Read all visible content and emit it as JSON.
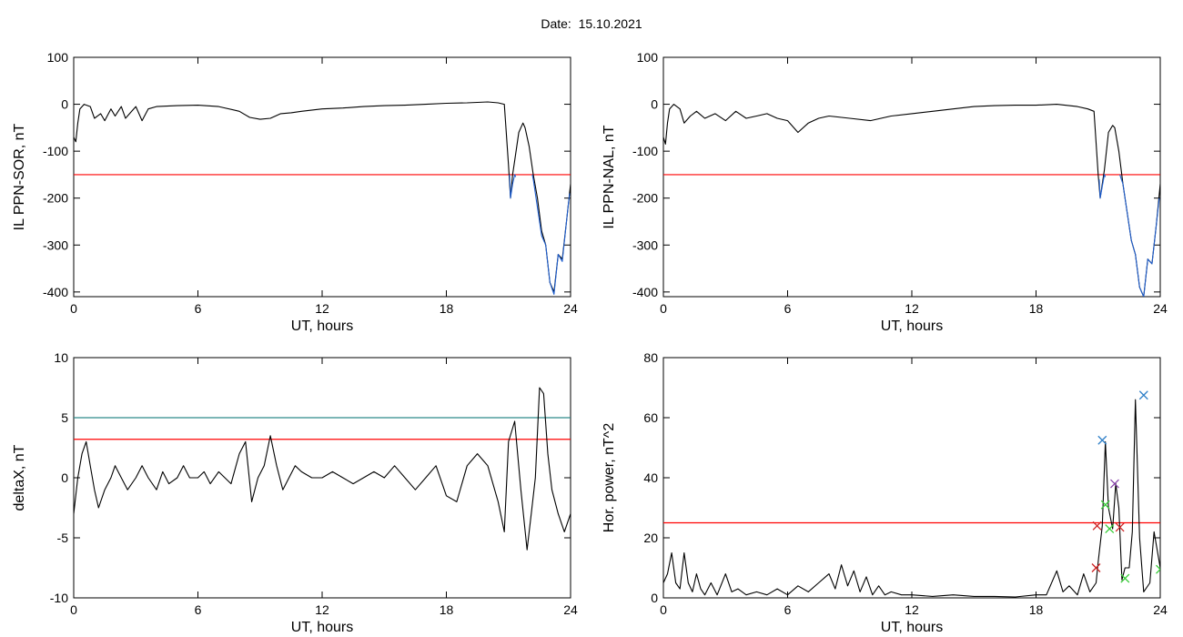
{
  "figure": {
    "title_label": "Date:",
    "title_value": "15.10.2021"
  },
  "colors": {
    "trace": "#000000",
    "threshold_red": "#ff0000",
    "threshold_teal": "#2e8b8b",
    "highlight_blue": "#1f5fd0",
    "marker_blue": "#2e7fc8",
    "marker_green": "#33cc33",
    "marker_red": "#cc2222",
    "marker_purple": "#8844aa"
  },
  "chart_data": [
    {
      "id": "il-sor",
      "type": "line",
      "xlabel": "UT, hours",
      "ylabel": "IL PPN-SOR, nT",
      "xlim": [
        0,
        24
      ],
      "ylim": [
        -410,
        100
      ],
      "xticks": [
        0,
        6,
        12,
        18,
        24
      ],
      "yticks": [
        100,
        0,
        -100,
        -200,
        -300,
        -400
      ],
      "threshold": {
        "y": -150,
        "color": "threshold_red"
      },
      "series": [
        {
          "color": "trace",
          "x": [
            0,
            0.1,
            0.2,
            0.3,
            0.5,
            0.8,
            1.0,
            1.3,
            1.5,
            1.8,
            2.0,
            2.3,
            2.5,
            2.8,
            3.0,
            3.3,
            3.6,
            4.0,
            5.0,
            6.0,
            7.0,
            8.0,
            8.5,
            9.0,
            9.5,
            10.0,
            10.5,
            11.0,
            12.0,
            13.0,
            14.0,
            15.0,
            16.0,
            17.0,
            18.0,
            19.0,
            20.0,
            20.5,
            20.8,
            21.0,
            21.1,
            21.2,
            21.3,
            21.5,
            21.7,
            21.8,
            22.0,
            22.2,
            22.4,
            22.6,
            22.8,
            23.0,
            23.2,
            23.4,
            23.6,
            23.8,
            24.0
          ],
          "values": [
            -70,
            -80,
            -40,
            -10,
            0,
            -5,
            -30,
            -20,
            -35,
            -10,
            -25,
            -5,
            -30,
            -15,
            -5,
            -35,
            -10,
            -5,
            -3,
            -2,
            -5,
            -15,
            -28,
            -32,
            -30,
            -20,
            -18,
            -15,
            -10,
            -8,
            -5,
            -3,
            -2,
            0,
            2,
            3,
            5,
            3,
            0,
            -130,
            -200,
            -150,
            -120,
            -60,
            -40,
            -50,
            -90,
            -150,
            -200,
            -270,
            -300,
            -380,
            -400,
            -320,
            -330,
            -250,
            -170
          ]
        },
        {
          "color": "highlight_blue",
          "x": [
            21.05,
            21.1,
            21.2,
            21.3,
            21.35
          ],
          "values": [
            -150,
            -200,
            -170,
            -150,
            -155
          ]
        },
        {
          "color": "highlight_blue",
          "x": [
            22.15,
            22.2,
            22.4,
            22.6,
            22.8,
            23.0,
            23.2,
            23.4,
            23.6,
            23.8,
            23.95
          ],
          "values": [
            -150,
            -160,
            -220,
            -280,
            -300,
            -380,
            -405,
            -320,
            -335,
            -250,
            -190
          ]
        }
      ]
    },
    {
      "id": "il-nal",
      "type": "line",
      "xlabel": "UT, hours",
      "ylabel": "IL PPN-NAL, nT",
      "xlim": [
        0,
        24
      ],
      "ylim": [
        -410,
        100
      ],
      "xticks": [
        0,
        6,
        12,
        18,
        24
      ],
      "yticks": [
        100,
        0,
        -100,
        -200,
        -300,
        -400
      ],
      "threshold": {
        "y": -150,
        "color": "threshold_red"
      },
      "series": [
        {
          "color": "trace",
          "x": [
            0,
            0.1,
            0.2,
            0.3,
            0.5,
            0.8,
            1.0,
            1.3,
            1.6,
            2.0,
            2.5,
            3.0,
            3.5,
            4.0,
            4.5,
            5.0,
            5.5,
            6.0,
            6.5,
            7.0,
            7.5,
            8.0,
            9.0,
            10.0,
            11.0,
            12.0,
            13.0,
            14.0,
            15.0,
            16.0,
            17.0,
            18.0,
            19.0,
            20.0,
            20.5,
            20.8,
            21.0,
            21.1,
            21.2,
            21.3,
            21.5,
            21.7,
            21.8,
            22.0,
            22.2,
            22.4,
            22.6,
            22.8,
            23.0,
            23.2,
            23.4,
            23.6,
            23.8,
            24.0
          ],
          "values": [
            -70,
            -85,
            -40,
            -10,
            0,
            -10,
            -40,
            -25,
            -15,
            -30,
            -20,
            -35,
            -15,
            -30,
            -25,
            -20,
            -30,
            -35,
            -60,
            -40,
            -30,
            -25,
            -30,
            -35,
            -25,
            -20,
            -15,
            -10,
            -5,
            -3,
            -2,
            -2,
            0,
            -5,
            -10,
            -15,
            -150,
            -200,
            -170,
            -140,
            -60,
            -45,
            -50,
            -100,
            -170,
            -230,
            -290,
            -320,
            -390,
            -410,
            -330,
            -340,
            -260,
            -170
          ]
        },
        {
          "color": "highlight_blue",
          "x": [
            21.05,
            21.1,
            21.2,
            21.3,
            21.35
          ],
          "values": [
            -160,
            -200,
            -175,
            -150,
            -155
          ]
        },
        {
          "color": "highlight_blue",
          "x": [
            22.05,
            22.2,
            22.4,
            22.6,
            22.8,
            23.0,
            23.2,
            23.4,
            23.6,
            23.8,
            23.95
          ],
          "values": [
            -150,
            -170,
            -230,
            -290,
            -320,
            -390,
            -410,
            -330,
            -340,
            -260,
            -200
          ]
        }
      ]
    },
    {
      "id": "delta-x",
      "type": "line",
      "xlabel": "UT, hours",
      "ylabel": "deltaX, nT",
      "xlim": [
        0,
        24
      ],
      "ylim": [
        -10,
        10
      ],
      "xticks": [
        0,
        6,
        12,
        18,
        24
      ],
      "yticks": [
        10,
        5,
        0,
        -5,
        -10
      ],
      "thresholds": [
        {
          "y": 5.0,
          "color": "threshold_teal"
        },
        {
          "y": 3.2,
          "color": "threshold_red"
        }
      ],
      "series": [
        {
          "color": "trace",
          "x": [
            0,
            0.2,
            0.4,
            0.6,
            0.8,
            1.0,
            1.2,
            1.5,
            1.8,
            2.0,
            2.3,
            2.6,
            3.0,
            3.3,
            3.6,
            4.0,
            4.3,
            4.6,
            5.0,
            5.3,
            5.6,
            6.0,
            6.3,
            6.6,
            7.0,
            7.3,
            7.6,
            8.0,
            8.3,
            8.6,
            8.9,
            9.2,
            9.5,
            9.8,
            10.1,
            10.4,
            10.7,
            11.0,
            11.5,
            12.0,
            12.5,
            13.0,
            13.5,
            14.0,
            14.5,
            15.0,
            15.5,
            16.0,
            16.5,
            17.0,
            17.5,
            18.0,
            18.5,
            19.0,
            19.5,
            20.0,
            20.5,
            20.8,
            21.0,
            21.3,
            21.6,
            21.9,
            22.1,
            22.3,
            22.5,
            22.7,
            22.9,
            23.1,
            23.4,
            23.7,
            24.0
          ],
          "values": [
            -3,
            0,
            2,
            3,
            1,
            -1,
            -2.5,
            -1,
            0,
            1,
            0,
            -1,
            0,
            1,
            0,
            -1,
            0.5,
            -0.5,
            0,
            1,
            0,
            0,
            0.5,
            -0.5,
            0.5,
            0,
            -0.5,
            2,
            3,
            -2,
            0,
            1,
            3.5,
            1,
            -1,
            0,
            1,
            0.5,
            0,
            0,
            0.5,
            0,
            -0.5,
            0,
            0.5,
            0,
            1,
            0,
            -1,
            0,
            1,
            -1.5,
            -2,
            1,
            2,
            1,
            -2,
            -4.5,
            3,
            4.7,
            -1,
            -6,
            -3,
            0,
            7.5,
            7,
            2,
            -1,
            -3,
            -4.5,
            -3
          ]
        }
      ]
    },
    {
      "id": "hor-power",
      "type": "line",
      "xlabel": "UT, hours",
      "ylabel": "Hor. power, nT^2",
      "xlim": [
        0,
        24
      ],
      "ylim": [
        0,
        80
      ],
      "xticks": [
        0,
        6,
        12,
        18,
        24
      ],
      "yticks": [
        80,
        60,
        40,
        20,
        0
      ],
      "threshold": {
        "y": 25,
        "color": "threshold_red"
      },
      "series": [
        {
          "color": "trace",
          "x": [
            0,
            0.2,
            0.4,
            0.6,
            0.8,
            1.0,
            1.2,
            1.4,
            1.6,
            1.8,
            2.0,
            2.3,
            2.6,
            3.0,
            3.3,
            3.6,
            4.0,
            4.5,
            5.0,
            5.5,
            6.0,
            6.5,
            7.0,
            7.5,
            8.0,
            8.3,
            8.6,
            8.9,
            9.2,
            9.5,
            9.8,
            10.1,
            10.4,
            10.7,
            11.0,
            11.5,
            12.0,
            13.0,
            14.0,
            15.0,
            16.0,
            17.0,
            18.0,
            18.5,
            19.0,
            19.3,
            19.6,
            20.0,
            20.3,
            20.6,
            20.9,
            21.0,
            21.2,
            21.35,
            21.5,
            21.7,
            21.85,
            22.0,
            22.15,
            22.3,
            22.5,
            22.65,
            22.8,
            23.0,
            23.2,
            23.5,
            23.7,
            24.0
          ],
          "values": [
            5,
            8,
            15,
            5,
            3,
            15,
            5,
            2,
            8,
            3,
            1,
            5,
            1,
            8,
            2,
            3,
            1,
            2,
            1,
            3,
            1,
            4,
            2,
            5,
            8,
            3,
            11,
            4,
            9,
            2,
            7,
            1,
            4,
            1,
            2,
            1,
            1,
            0.5,
            1,
            0.5,
            0.5,
            0.3,
            1,
            1,
            9,
            2,
            4,
            1,
            8,
            2,
            5,
            12,
            24,
            52,
            30,
            23,
            38,
            30,
            6,
            10,
            10,
            22,
            66,
            20,
            2,
            5,
            22,
            10
          ]
        },
        {
          "type": "markers",
          "points": [
            {
              "x": 21.2,
              "y": 52.5,
              "color": "marker_blue"
            },
            {
              "x": 23.2,
              "y": 67.5,
              "color": "marker_blue"
            },
            {
              "x": 21.35,
              "y": 31,
              "color": "marker_green"
            },
            {
              "x": 21.55,
              "y": 23,
              "color": "marker_green"
            },
            {
              "x": 22.3,
              "y": 6.5,
              "color": "marker_green"
            },
            {
              "x": 24.0,
              "y": 9.5,
              "color": "marker_green"
            },
            {
              "x": 20.95,
              "y": 24,
              "color": "marker_red"
            },
            {
              "x": 22.05,
              "y": 23.5,
              "color": "marker_red"
            },
            {
              "x": 21.8,
              "y": 38,
              "color": "marker_purple"
            },
            {
              "x": 20.9,
              "y": 10,
              "color": "marker_red"
            }
          ]
        }
      ]
    }
  ]
}
